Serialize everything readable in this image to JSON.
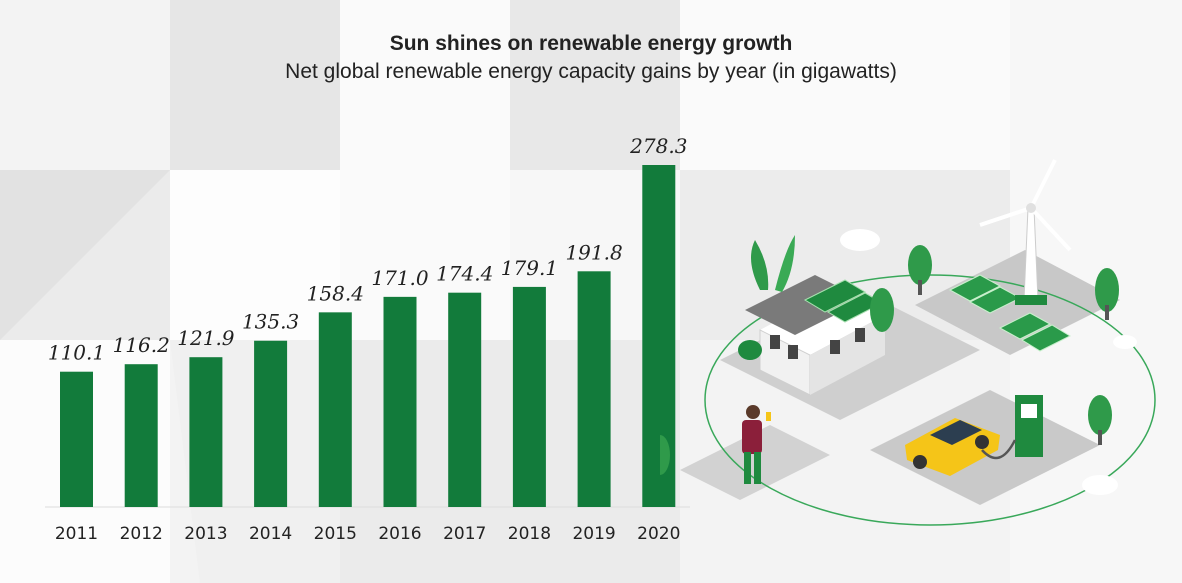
{
  "chart_data": {
    "type": "bar",
    "title": "Sun shines on renewable energy growth",
    "subtitle": "Net global renewable energy capacity gains by year (in gigawatts)",
    "xlabel": "",
    "ylabel": "",
    "categories": [
      "2011",
      "2012",
      "2013",
      "2014",
      "2015",
      "2016",
      "2017",
      "2018",
      "2019",
      "2020"
    ],
    "values": [
      110.1,
      116.2,
      121.9,
      135.3,
      158.4,
      171.0,
      174.4,
      179.1,
      191.8,
      278.3
    ],
    "value_labels": [
      "110.1",
      "116.2",
      "121.9",
      "135.3",
      "158.4",
      "171.0",
      "174.4",
      "179.1",
      "191.8",
      "278.3"
    ],
    "ylim": [
      0,
      278.3
    ],
    "grid": false,
    "bar_color": "#127b3b"
  },
  "colors": {
    "bar": "#127b3b",
    "background": "#f3f3f3",
    "panel_light": "#e9e9e9",
    "panel_white": "#ffffff",
    "accent_yellow": "#f5c518",
    "leaf_green": "#2f9a4a"
  },
  "illustration": {
    "icons": [
      "house-icon",
      "solar-panel-icon",
      "wind-turbine-icon",
      "car-icon",
      "charging-station-icon",
      "person-icon",
      "tree-icon",
      "cloud-icon"
    ]
  }
}
